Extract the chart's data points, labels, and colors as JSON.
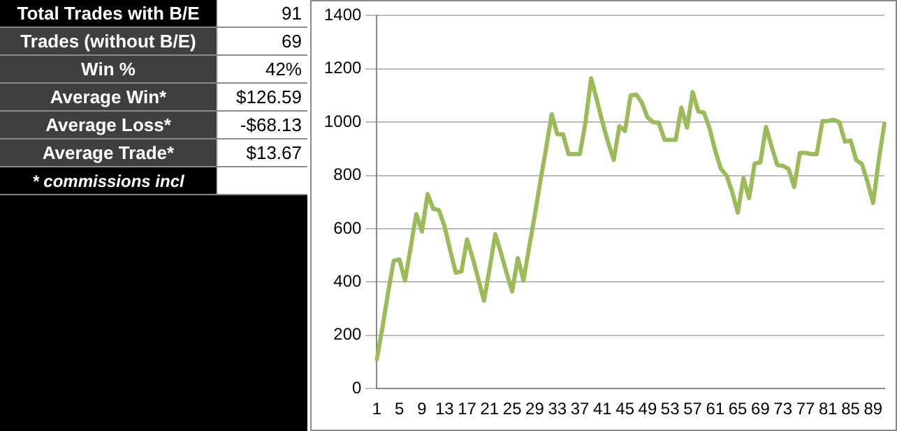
{
  "chart_data": [
    {
      "type": "other",
      "annotations": [
        "Total Trades with B/E",
        "91",
        "Trades (without B/E)",
        "69",
        "Win %",
        "42%",
        "Average Win*",
        "$126.59",
        "Average Loss*",
        "-$68.13",
        "Average Trade*",
        "$13.67",
        "* commissions incl"
      ]
    },
    {
      "type": "line",
      "categories": [
        "1",
        null,
        null,
        null,
        "5",
        null,
        null,
        null,
        "9",
        null,
        null,
        null,
        "13",
        null,
        null,
        null,
        "17",
        null,
        null,
        null,
        "21",
        null,
        null,
        null,
        "25",
        null,
        null,
        null,
        "29",
        null,
        null,
        null,
        "33",
        null,
        null,
        null,
        "37",
        null,
        null,
        null,
        "41",
        null,
        null,
        null,
        "45",
        null,
        null,
        null,
        "49",
        null,
        null,
        null,
        "53",
        null,
        null,
        null,
        "57",
        null,
        null,
        null,
        "61",
        null,
        null,
        null,
        "65",
        null,
        null,
        null,
        "69",
        null,
        null,
        null,
        "73",
        null,
        null,
        null,
        "77",
        null,
        null,
        null,
        "81",
        null,
        null,
        null,
        "85",
        null,
        null,
        null,
        "89",
        null,
        null
      ],
      "series": [
        {
          "color": "#9bbb59",
          "values": [
            110,
            230,
            360,
            480,
            485,
            405,
            530,
            655,
            590,
            730,
            675,
            670,
            610,
            520,
            435,
            440,
            560,
            490,
            410,
            330,
            450,
            580,
            510,
            435,
            365,
            490,
            405,
            530,
            650,
            780,
            900,
            1030,
            955,
            955,
            880,
            880,
            880,
            1000,
            1165,
            1085,
            1000,
            925,
            858,
            985,
            967,
            1100,
            1104,
            1073,
            1018,
            1000,
            998,
            934,
            934,
            934,
            1055,
            980,
            1113,
            1040,
            1036,
            976,
            894,
            825,
            800,
            739,
            660,
            790,
            715,
            845,
            849,
            982,
            909,
            839,
            836,
            825,
            757,
            885,
            885,
            880,
            880,
            1004,
            1004,
            1009,
            1000,
            927,
            931,
            858,
            843,
            776,
            697,
            858,
            995
          ]
        }
      ],
      "ylim": [
        0,
        1400
      ],
      "yticks": [
        0,
        200,
        400,
        600,
        800,
        1000,
        1200,
        1400
      ],
      "grid": "y",
      "legend": false,
      "marker": "none",
      "line_style": "solid"
    }
  ]
}
